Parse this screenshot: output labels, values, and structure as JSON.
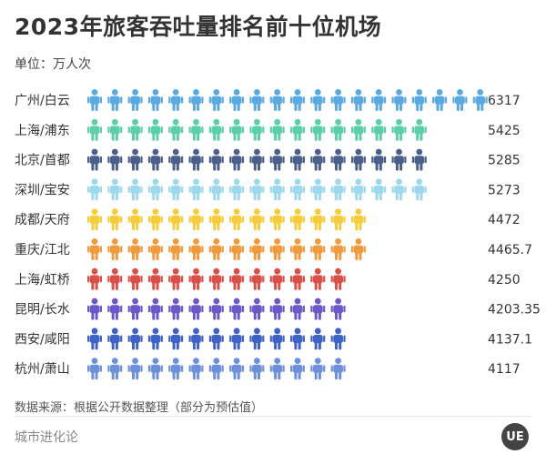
{
  "title": "2023年旅客吞吐量排名前十位机场",
  "unit": "单位：万人次",
  "source": "数据来源：根据公开数据整理（部分为预估值）",
  "brand": "城市进化论",
  "logo_text": "UE",
  "chart_data": {
    "type": "bar",
    "title": "2023年旅客吞吐量排名前十位机场",
    "unit": "万人次",
    "categories": [
      "广州/白云",
      "上海/浦东",
      "北京/首都",
      "深圳/宝安",
      "成都/天府",
      "重庆/江北",
      "上海/虹桥",
      "昆明/长水",
      "西安/咸阳",
      "杭州/萧山"
    ],
    "values": [
      6317,
      5425,
      5285,
      5273,
      4472,
      4465.7,
      4250,
      4203.35,
      4137.1,
      4117
    ],
    "value_labels": [
      "6317",
      "5425",
      "5285",
      "5273",
      "4472",
      "4465.7",
      "4250",
      "4203.35",
      "4137.1",
      "4117"
    ],
    "colors": [
      "#5aa9e0",
      "#5dcfa6",
      "#4a5f8a",
      "#9ed8ec",
      "#f5cd3c",
      "#ef9a3c",
      "#d9504a",
      "#6a59c8",
      "#3f62c4",
      "#6d90d8"
    ],
    "icon": "person-icon"
  }
}
